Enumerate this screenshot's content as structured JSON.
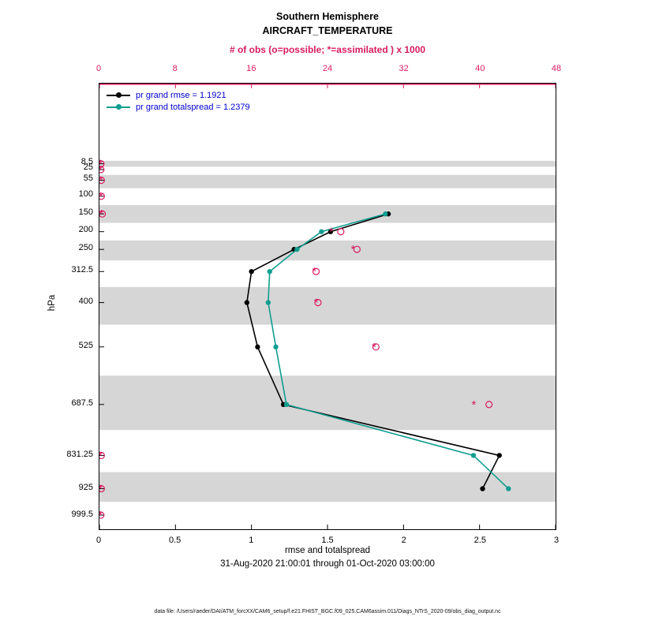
{
  "title": {
    "line1": "Southern Hemisphere",
    "line2": "AIRCRAFT_TEMPERATURE"
  },
  "top_axis": {
    "label": "# of obs (o=possible; *=assimilated ) x 1000",
    "ticks": [
      0,
      8,
      16,
      24,
      32,
      40,
      48
    ],
    "max": 48
  },
  "bottom_axis": {
    "label": "rmse and totalspread",
    "ticks": [
      0,
      0.5,
      1,
      1.5,
      2,
      2.5,
      3
    ],
    "max": 3
  },
  "left_axis": {
    "label": "hPa",
    "tick_levels": [
      8.5,
      25,
      55,
      100,
      150,
      200,
      250,
      312.5,
      400,
      525,
      687.5,
      831.25,
      925,
      999.5
    ]
  },
  "legend": [
    {
      "label": "pr grand rmse = 1.1921",
      "color": "#000000"
    },
    {
      "label": "pr grand totalspread = 1.2379",
      "color": "#0f9e90"
    }
  ],
  "subtitle": "31-Aug-2020 21:00:01 through 01-Oct-2020 03:00:00",
  "footer": "data file: /Users/raeder/DAI/ATM_forcXX/CAM6_setup/f.e21.FHIST_BGC.f09_025.CAM6assim.011/Diags_NTrS_2020-09/obs_diag_output.nc",
  "colors": {
    "accent": "#d81b60",
    "teal": "#0f9e90",
    "legend_text": "#0000cd",
    "band": "#d6d6d6"
  },
  "chart_data": {
    "type": "line",
    "title": "Southern Hemisphere AIRCRAFT_TEMPERATURE",
    "xlabel": "rmse and totalspread",
    "ylabel": "hPa",
    "x2label": "# of obs (o=possible; *=assimilated ) x 1000",
    "xlim": [
      0,
      3
    ],
    "x2lim": [
      0,
      48
    ],
    "x_ticks": [
      0,
      0.5,
      1,
      1.5,
      2,
      2.5,
      3
    ],
    "x2_ticks": [
      0,
      8,
      16,
      24,
      32,
      40,
      48
    ],
    "levels_hpa": [
      8.5,
      25,
      55,
      100,
      150,
      200,
      250,
      312.5,
      400,
      525,
      687.5,
      831.25,
      925,
      999.5
    ],
    "pressure_axis_range": [
      -217.6,
      1039.4
    ],
    "band_color": "#d6d6d6",
    "accent_color": "#d81b60",
    "marker_glyphs": {
      "assimilated": "*",
      "possible": "o"
    },
    "series": [
      {
        "name": "pr grand rmse",
        "grand_value": 1.1921,
        "color": "#000000",
        "points": [
          [
            150,
            1.9
          ],
          [
            200,
            1.52
          ],
          [
            250,
            1.28
          ],
          [
            312.5,
            1.0
          ],
          [
            400,
            0.97
          ],
          [
            525,
            1.04
          ],
          [
            687.5,
            1.21
          ],
          [
            831.25,
            2.63
          ],
          [
            925,
            2.52
          ]
        ]
      },
      {
        "name": "pr grand totalspread",
        "grand_value": 1.2379,
        "color": "#0f9e90",
        "points": [
          [
            150,
            1.88
          ],
          [
            200,
            1.46
          ],
          [
            250,
            1.3
          ],
          [
            312.5,
            1.12
          ],
          [
            400,
            1.11
          ],
          [
            525,
            1.16
          ],
          [
            687.5,
            1.23
          ],
          [
            831.25,
            2.46
          ],
          [
            925,
            2.69
          ]
        ]
      }
    ],
    "obs_counts_x1000": [
      {
        "level": 8.5,
        "possible": 0.15,
        "assimilated": 0.1
      },
      {
        "level": 25,
        "possible": 0.15,
        "assimilated": 0.1
      },
      {
        "level": 55,
        "possible": 0.2,
        "assimilated": 0.15
      },
      {
        "level": 100,
        "possible": 0.2,
        "assimilated": 0.15
      },
      {
        "level": 150,
        "possible": 0.3,
        "assimilated": 0.2
      },
      {
        "level": 200,
        "possible": 25.4,
        "assimilated": 24.4
      },
      {
        "level": 250,
        "possible": 27.1,
        "assimilated": 26.7
      },
      {
        "level": 312.5,
        "possible": 22.8,
        "assimilated": 22.6
      },
      {
        "level": 400,
        "possible": 23.0,
        "assimilated": 22.8
      },
      {
        "level": 525,
        "possible": 29.1,
        "assimilated": 28.9
      },
      {
        "level": 687.5,
        "possible": 41.0,
        "assimilated": 39.4
      },
      {
        "level": 831.25,
        "possible": 0.2,
        "assimilated": 0.1
      },
      {
        "level": 925,
        "possible": 0.2,
        "assimilated": 0.1
      },
      {
        "level": 999.5,
        "possible": 0.15,
        "assimilated": 0.1
      }
    ]
  }
}
